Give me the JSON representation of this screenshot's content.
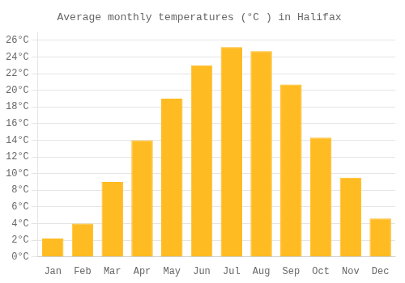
{
  "chart_data": {
    "type": "bar",
    "title": "Average monthly temperatures (°C ) in Halifax",
    "categories": [
      "Jan",
      "Feb",
      "Mar",
      "Apr",
      "May",
      "Jun",
      "Jul",
      "Aug",
      "Sep",
      "Oct",
      "Nov",
      "Dec"
    ],
    "values": [
      2.2,
      4.0,
      9.0,
      14.0,
      19.0,
      23.0,
      25.2,
      24.7,
      20.7,
      14.3,
      9.5,
      4.6
    ],
    "color": "#FFBB22",
    "ylim": [
      0,
      27
    ],
    "yticks": [
      {
        "value": 0,
        "label": "0°C"
      },
      {
        "value": 2,
        "label": "2°C"
      },
      {
        "value": 4,
        "label": "4°C"
      },
      {
        "value": 6,
        "label": "6°C"
      },
      {
        "value": 8,
        "label": "8°C"
      },
      {
        "value": 10,
        "label": "10°C"
      },
      {
        "value": 12,
        "label": "12°C"
      },
      {
        "value": 14,
        "label": "14°C"
      },
      {
        "value": 16,
        "label": "16°C"
      },
      {
        "value": 18,
        "label": "18°C"
      },
      {
        "value": 20,
        "label": "20°C"
      },
      {
        "value": 22,
        "label": "22°C"
      },
      {
        "value": 24,
        "label": "24°C"
      },
      {
        "value": 26,
        "label": "26°C"
      }
    ],
    "grid": true
  }
}
